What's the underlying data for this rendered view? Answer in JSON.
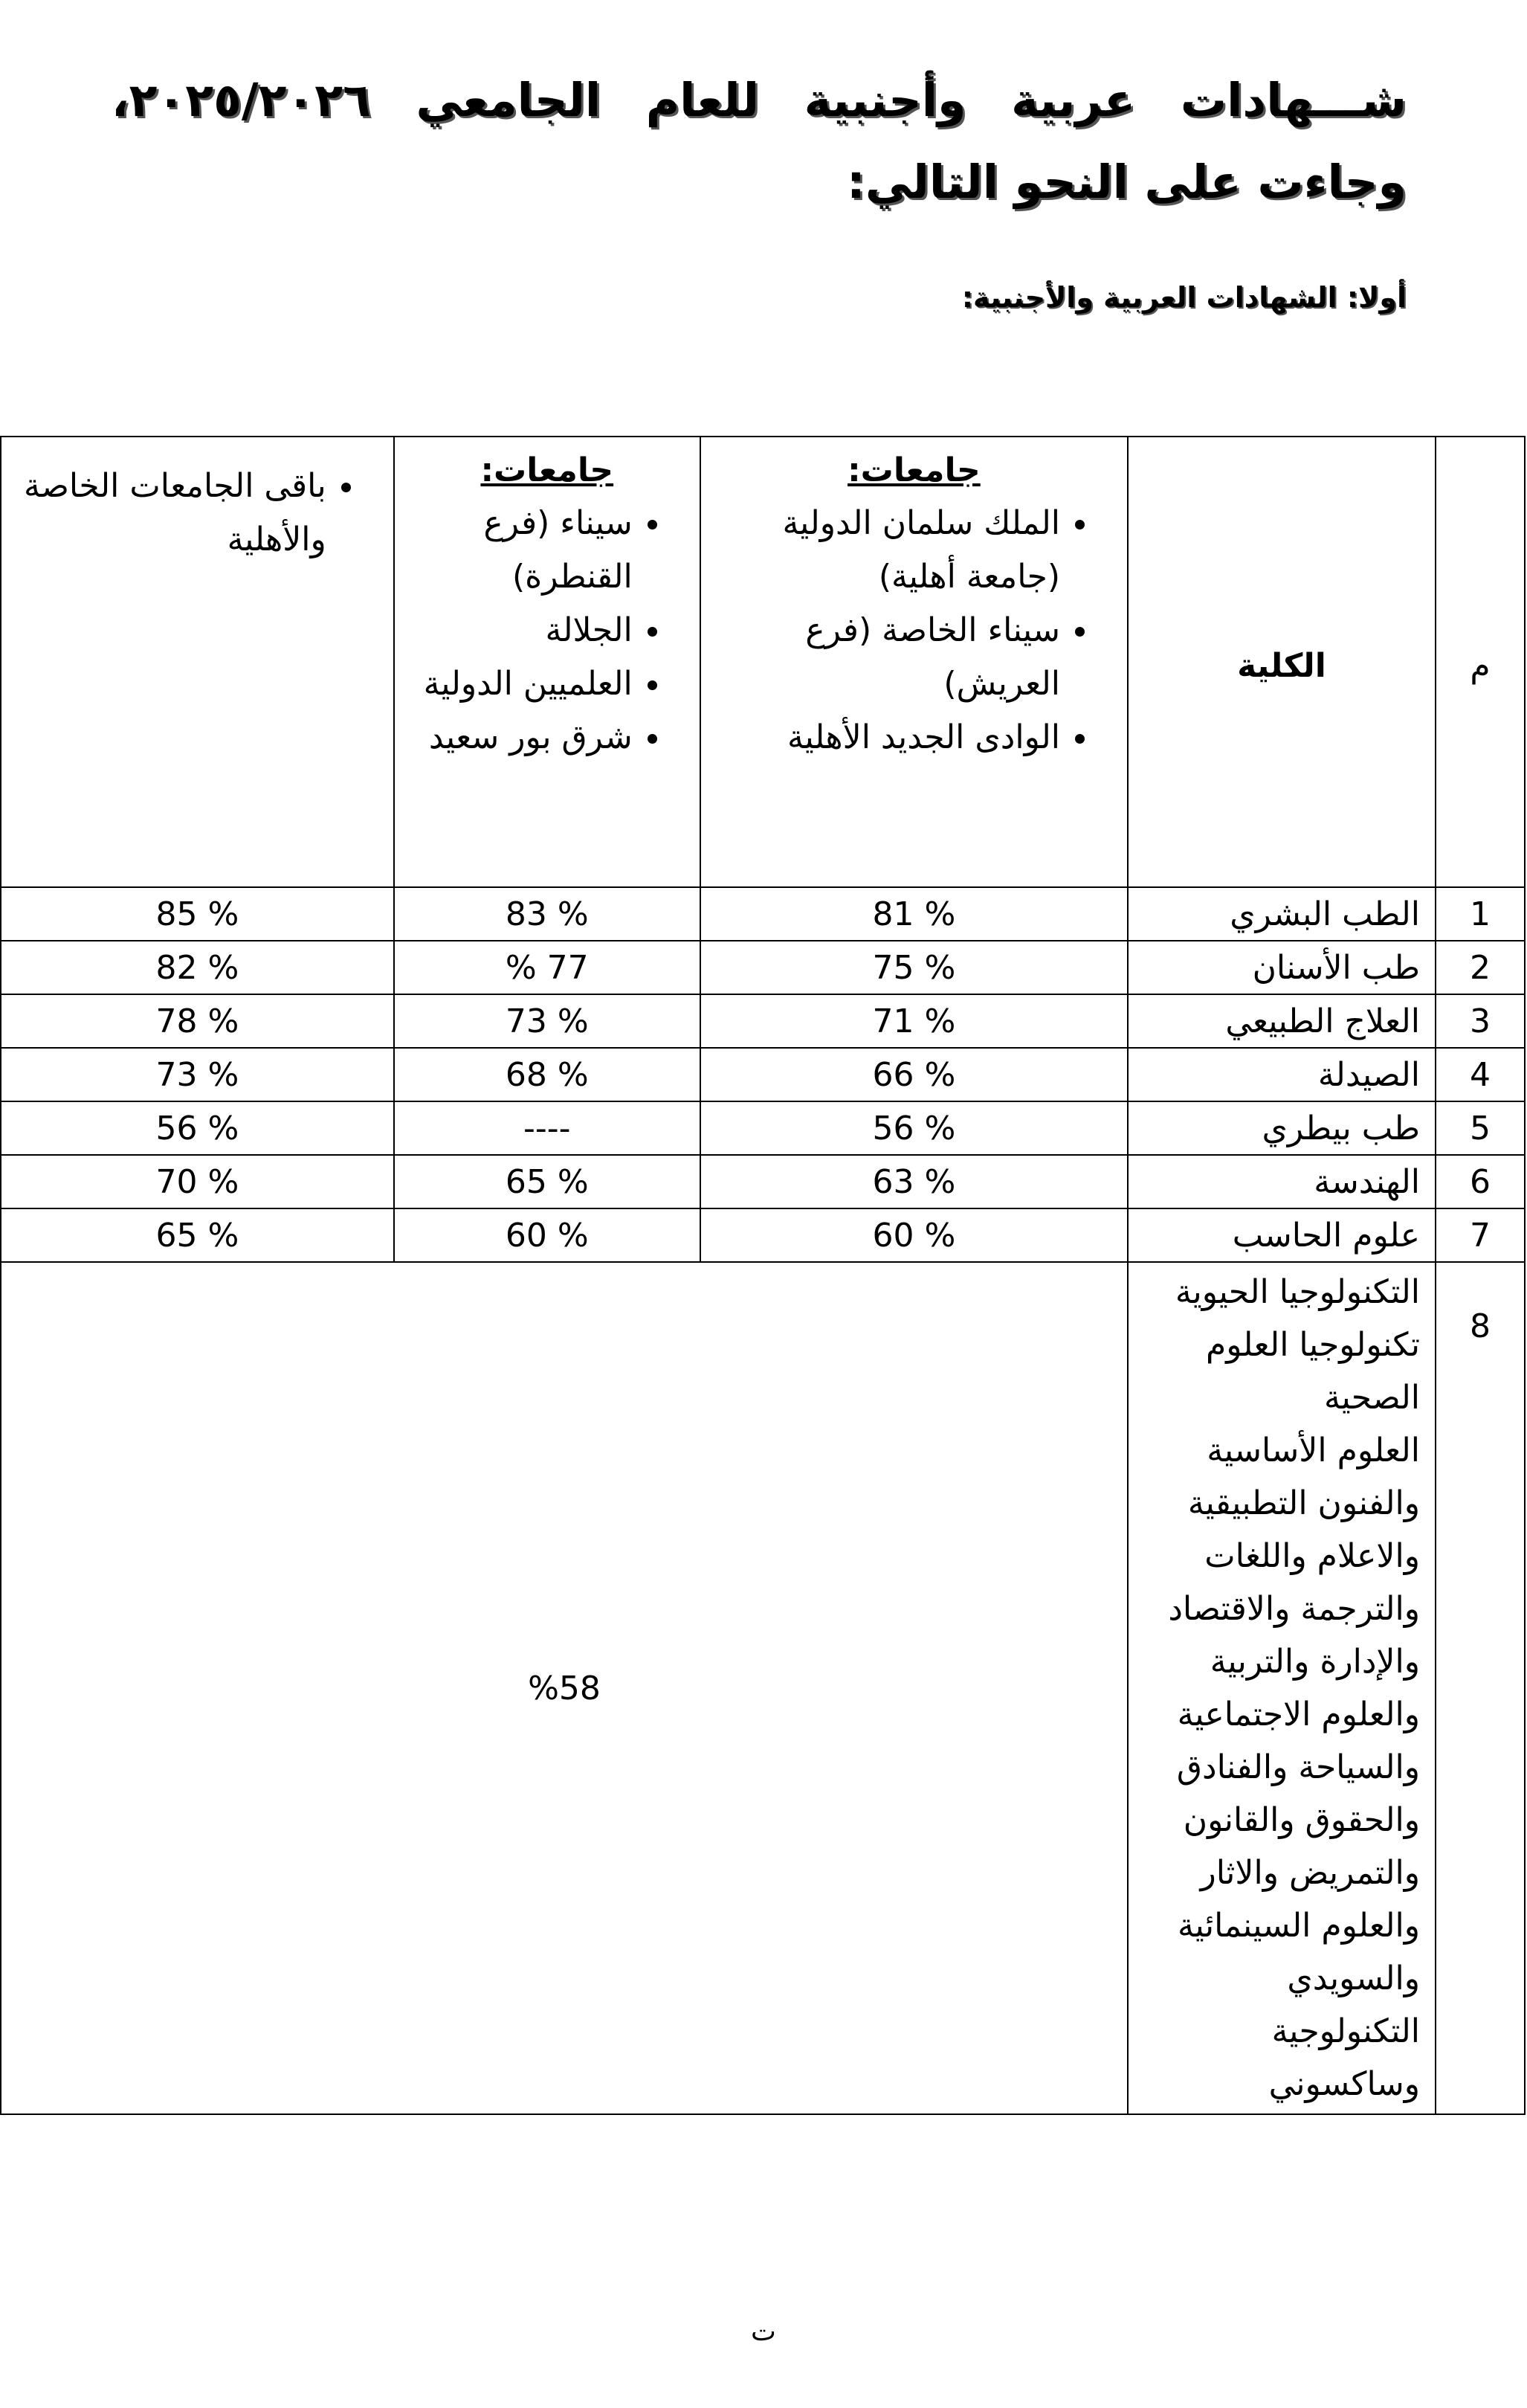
{
  "heading": {
    "title": "شـــهادات عربية وأجنبية للعام الجامعي ٢٠٢٥/٢٠٢٦، وجاءت على النحو التالي:",
    "subheading": "أولا: الشهادات العربية والأجنبية:"
  },
  "table": {
    "headers": {
      "index": "م",
      "college": "الكلية",
      "group1": {
        "title": "جامعات:",
        "items": [
          "الملك سلمان الدولية (جامعة أهلية)",
          "سيناء الخاصة (فرع العريش)",
          "الوادى الجديد الأهلية"
        ]
      },
      "group2": {
        "title": "جامعات:",
        "items": [
          "سيناء (فرع القنطرة)",
          "الجلالة",
          "العلميين الدولية",
          "شرق بور سعيد"
        ]
      },
      "group3": {
        "items": [
          "باقى الجامعات الخاصة والأهلية"
        ]
      }
    },
    "rows": [
      {
        "index": "1",
        "college": "الطب البشري",
        "g1": "% 81",
        "g2": "% 83",
        "g3": "% 85"
      },
      {
        "index": "2",
        "college": "طب الأسنان",
        "g1": "% 75",
        "g2": "77 %",
        "g3": "% 82"
      },
      {
        "index": "3",
        "college": "العلاج الطبيعي",
        "g1": "% 71",
        "g2": "% 73",
        "g3": "% 78"
      },
      {
        "index": "4",
        "college": "الصيدلة",
        "g1": "% 66",
        "g2": "% 68",
        "g3": "% 73"
      },
      {
        "index": "5",
        "college": "طب بيطري",
        "g1": "% 56",
        "g2": "----",
        "g3": "% 56"
      },
      {
        "index": "6",
        "college": "الهندسة",
        "g1": "% 63",
        "g2": "% 65",
        "g3": "% 70"
      },
      {
        "index": "7",
        "college": "علوم الحاسب",
        "g1": "% 60",
        "g2": "% 60",
        "g3": "% 65"
      }
    ],
    "last_row": {
      "index": "8",
      "college_lines": [
        "التكنولوجيا الحيوية",
        "تكنولوجيا العلوم",
        "الصحية",
        "العلوم الأساسية",
        "والفنون التطبيقية",
        "والاعلام واللغات",
        "والترجمة والاقتصاد",
        "والإدارة والتربية",
        "والعلوم الاجتماعية",
        "والسياحة والفنادق",
        "والحقوق والقانون",
        "والتمريض والاثار",
        "والعلوم السينمائية",
        "والسويدي",
        "التكنولوجية",
        "وساكسوني"
      ],
      "value": "%58"
    }
  },
  "footer": {
    "page_marker": "ت"
  }
}
